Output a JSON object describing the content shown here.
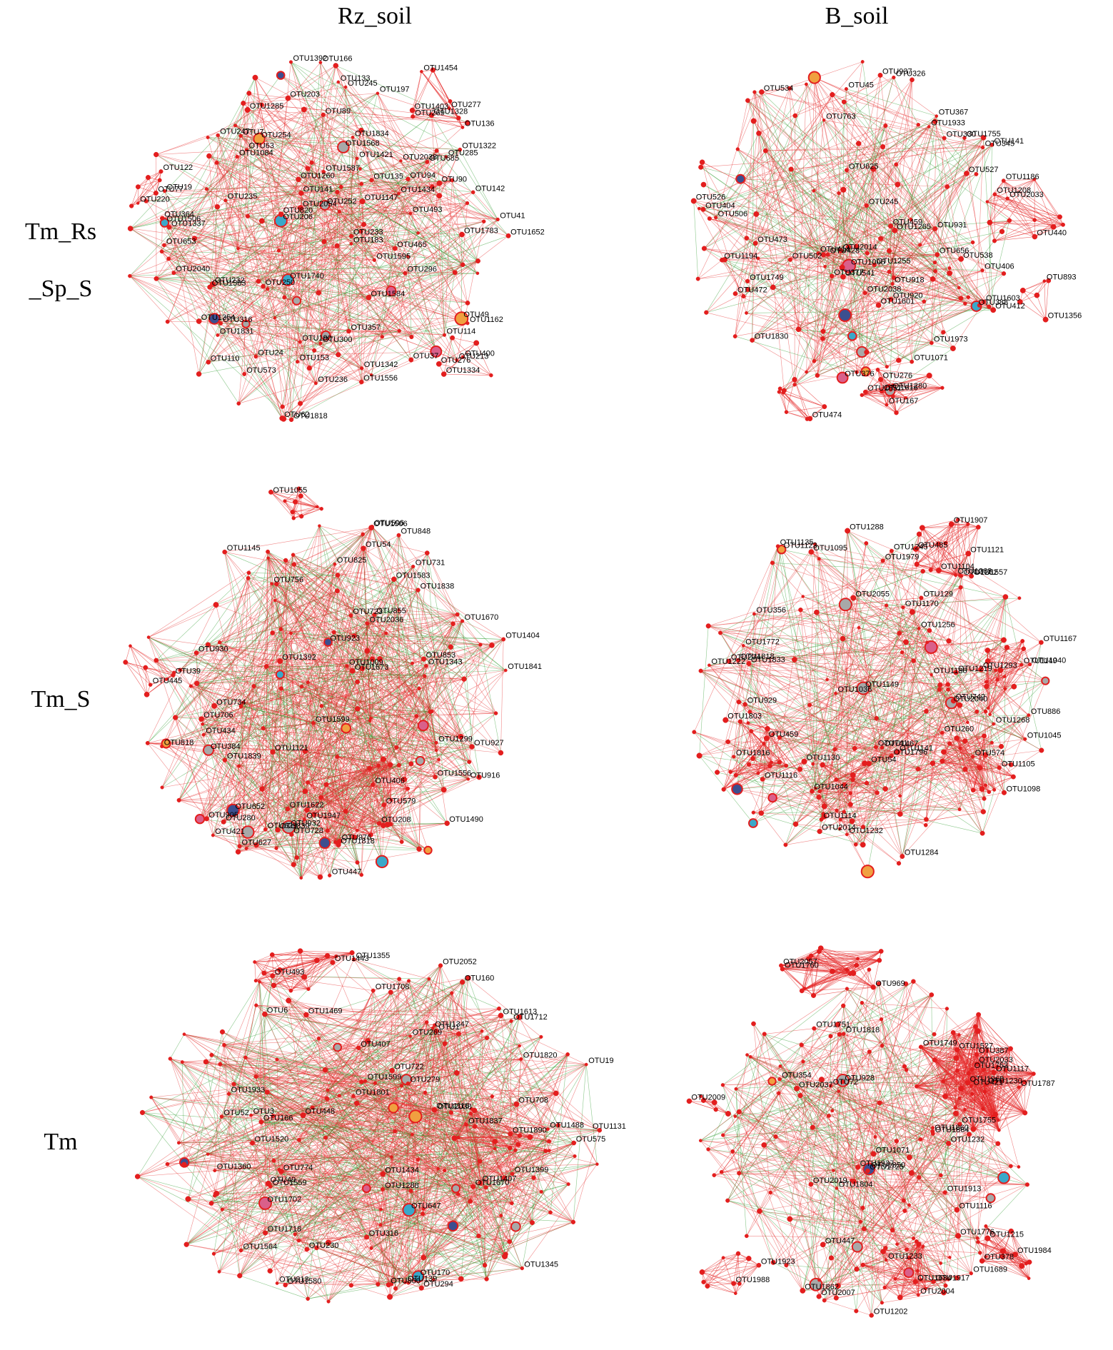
{
  "columns": [
    "Rz_soil",
    "B_soil"
  ],
  "rows": [
    {
      "lines": [
        "Tm_Rs",
        "_Sp_S"
      ]
    },
    {
      "lines": [
        "Tm_S"
      ]
    },
    {
      "lines": [
        "Tm"
      ]
    }
  ],
  "colors": {
    "positive_edge": "#e52a2a",
    "negative_edge": "#2e9a2e",
    "node": "#e31e1e",
    "hub_gray": "#a8a8a8",
    "hub_cyan": "#3aa8c9",
    "hub_navy": "#3c4f8f",
    "hub_orange": "#f0a040",
    "hub_pink": "#d9608a"
  },
  "networks": [
    {
      "id": "rz-tm-rs-sp-s",
      "column": "Rz_soil",
      "row": "Tm_Rs_Sp_S",
      "labels": [
        "OTU49",
        "OTU1568",
        "OTU1506",
        "OTU254",
        "OTU252",
        "OTU206",
        "OTU197",
        "OTU110",
        "OTU135",
        "OTU166",
        "OTU2040",
        "OTU236",
        "OTU1587",
        "OTU1354",
        "OTU1584",
        "OTU190",
        "OTU1342",
        "OTU250",
        "OTU233",
        "OTU1834",
        "OTU19",
        "OTU63",
        "OTU685",
        "OTU1434",
        "OTU114",
        "OTU364",
        "OTU285",
        "OTU245",
        "OTU232",
        "OTU1595",
        "OTU1583",
        "OTU1322",
        "OTU7",
        "OTU24",
        "OTU247",
        "OTU653",
        "OTU133",
        "OTU203",
        "OTU141",
        "OTU1392",
        "OTU41",
        "OTU62",
        "OTU37",
        "OTU1162",
        "OTU1783",
        "OTU465",
        "OTU357",
        "OTU1285",
        "OTU573",
        "OTU1556",
        "OTU183",
        "OTU1337",
        "OTU1084",
        "OTU1260",
        "OTU296",
        "OTU2038",
        "OTU1652",
        "OTU300",
        "OTU316",
        "OTU235",
        "OTU1818",
        "OTU1421",
        "OTU142",
        "OTU153",
        "OTU1831",
        "OTU1147",
        "OTU493",
        "OTU1328",
        "OTU820",
        "OTU89",
        "OTU213",
        "OTU2054",
        "OTU90",
        "OTU94",
        "OTU77",
        "OTU122",
        "OTU220",
        "OTU277",
        "OTU269",
        "OTU1454",
        "OTU136",
        "OTU1403",
        "OTU276",
        "OTU400",
        "OTU1334",
        "OTU1740"
      ]
    },
    {
      "id": "b-tm-rs-sp-s",
      "column": "B_soil",
      "row": "Tm_Rs_Sp_S",
      "labels": [
        "OTU376",
        "OTU388",
        "OTU1006",
        "OTU763",
        "OTU1933",
        "OTU377",
        "OTU1194",
        "OTU1973",
        "OTU541",
        "OTU406",
        "OTU1265",
        "OTU472",
        "OTU412",
        "OTU931",
        "OTU526",
        "OTU506",
        "OTU538",
        "OTU920",
        "OTU527",
        "OTU1749",
        "OTU1603",
        "OTU534",
        "OTU1755",
        "OTU473",
        "OTU656",
        "OTU345",
        "OTU1830",
        "OTU367",
        "OTU2014",
        "OTU1255",
        "OTU326",
        "OTU404",
        "OTU2038",
        "OTU918",
        "OTU1601",
        "OTU414",
        "OTU1071",
        "OTU428",
        "OTU459",
        "OTU141",
        "OTU245",
        "OTU502",
        "OTU45",
        "OTU937",
        "OTU330",
        "OTU625",
        "OTU1186",
        "OTU440",
        "OTU1208",
        "OTU2033",
        "OTU893",
        "OTU1356",
        "OTU1616",
        "OTU276",
        "OTU1280",
        "OTU1851",
        "OTU167",
        "OTU474"
      ]
    },
    {
      "id": "rz-tm-s",
      "column": "Rz_soil",
      "row": "Tm_S",
      "labels": [
        "OTU932",
        "OTU923",
        "OTU384",
        "OTU652",
        "OTU916",
        "OTU839",
        "OTU1622",
        "OTU629",
        "OTU905",
        "OTU1556",
        "OTU406",
        "OTU421",
        "OTU208",
        "OTU434",
        "OTU930",
        "OTU627",
        "OTU54",
        "OTU728",
        "OTU1404",
        "OTU756",
        "OTU734",
        "OTU1506",
        "OTU1299",
        "OTU976",
        "OTU1838",
        "OTU1009",
        "OTU818",
        "OTU825",
        "OTU579",
        "OTU447",
        "OTU1121",
        "OTU1839",
        "OTU1818",
        "OTU855",
        "OTU1841",
        "OTU1670",
        "OTU706",
        "OTU1947",
        "OTU731",
        "OTU1392",
        "OTU280",
        "OTU1583",
        "OTU723",
        "OTU1599",
        "OTU1490",
        "OTU506",
        "OTU927",
        "OTU853",
        "OTU1673",
        "OTU2036",
        "OTU1145",
        "OTU1343",
        "OTU848",
        "OTU39",
        "OTU445",
        "OTU1055"
      ]
    },
    {
      "id": "b-tm-s",
      "column": "B_soil",
      "row": "Tm_S",
      "labels": [
        "OTU2040",
        "OTU1123",
        "OTU1149",
        "OTU129",
        "OTU459",
        "OTU1288",
        "OTU274",
        "OTU1036",
        "OTU1833",
        "OTU1095",
        "OTU260",
        "OTU1979",
        "OTU1284",
        "OTU742",
        "OTU1282",
        "OTU1256",
        "OTU1816",
        "OTU1141",
        "OTU1135",
        "OTU1803",
        "OTU1268",
        "OTU1818",
        "OTU54",
        "OTU1114",
        "OTU1186",
        "OTU1219",
        "OTU1044",
        "OTU2014",
        "OTU1772",
        "OTU1232",
        "OTU1293",
        "OTU1170",
        "OTU1222",
        "OTU356",
        "OTU1796",
        "OTU929",
        "OTU1121",
        "OTU1116",
        "OTU1105",
        "OTU1098",
        "OTU1467",
        "OTU1130",
        "OTU1167",
        "OTU1045",
        "OTU1245",
        "OTU741",
        "OTU886",
        "OTU2055",
        "OTU574",
        "OTU1557",
        "OTU1104",
        "OTU1907",
        "OTU485",
        "OTU1262",
        "OTU1040",
        "OTU1149"
      ]
    },
    {
      "id": "rz-tm",
      "column": "Rz_soil",
      "row": "Tm",
      "labels": [
        "OTU647",
        "OTU1702",
        "OTU170",
        "OTU866",
        "OTU1520",
        "OTU575",
        "OTU316",
        "OTU1407",
        "OTU1399",
        "OTU1360",
        "OTU2052",
        "OTU1488",
        "OTU1580",
        "OTU1469",
        "OTU407",
        "OTU1559",
        "OTU1718",
        "OTU1613",
        "OTU160",
        "OTU279",
        "OTU493",
        "OTU269",
        "OTU1",
        "OTU52",
        "OTU139",
        "OTU213",
        "OTU1837",
        "OTU19",
        "OTU1443",
        "OTU1564",
        "OTU1599",
        "OTU1131",
        "OTU49",
        "OTU1820",
        "OTU1712",
        "OTU294",
        "OTU708",
        "OTU1355",
        "OTU1347",
        "OTU448",
        "OTU722",
        "OTU1890",
        "OTU774",
        "OTU1288",
        "OTU1801",
        "OTU1933",
        "OTU2038",
        "OTU1670",
        "OTU1708",
        "OTU1434",
        "OTU230",
        "OTU1345",
        "OTU166",
        "OTU6",
        "OTU1116",
        "OTU3"
      ]
    },
    {
      "id": "b-tm",
      "column": "B_soil",
      "row": "Tm",
      "labels": [
        "OTU1850",
        "OTU1755",
        "OTU1071",
        "OTU1232",
        "OTU928",
        "OTU1913",
        "OTU1860",
        "OTU1776",
        "OTU1689",
        "OTU1233",
        "OTU354",
        "OTU1117",
        "OTU1116",
        "OTU1725",
        "OTU1862",
        "OTU1202",
        "OTU1787",
        "OTU1804",
        "OTU447",
        "OTU1937",
        "OTU1864",
        "OTU1818",
        "OTU1230",
        "OTU72",
        "OTU2007",
        "OTU2019",
        "OTU1751",
        "OTU2037",
        "OTU2057",
        "OTU1760",
        "OTU969",
        "OTU1753",
        "OTU421",
        "OTU387",
        "OTU1749",
        "OTU2033",
        "OTU1527",
        "OTU1968",
        "OTU2009",
        "OTU1634",
        "OTU1917",
        "OTU2004",
        "OTU1923",
        "OTU1988",
        "OTU1215",
        "OTU1984",
        "OTU378"
      ]
    }
  ]
}
